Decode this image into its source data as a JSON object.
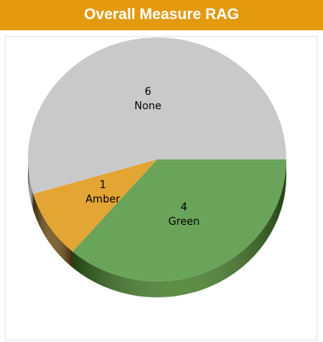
{
  "chart_data": {
    "type": "pie",
    "title": "Overall Measure RAG",
    "categories": [
      "Green",
      "Amber",
      "None"
    ],
    "values": [
      4,
      1,
      6
    ],
    "colors": [
      "#6aa35a",
      "#e3a534",
      "#c9c9c9"
    ],
    "side_colors": [
      "#3f7a22",
      "#6b4a10",
      "#8a8a8a"
    ]
  }
}
